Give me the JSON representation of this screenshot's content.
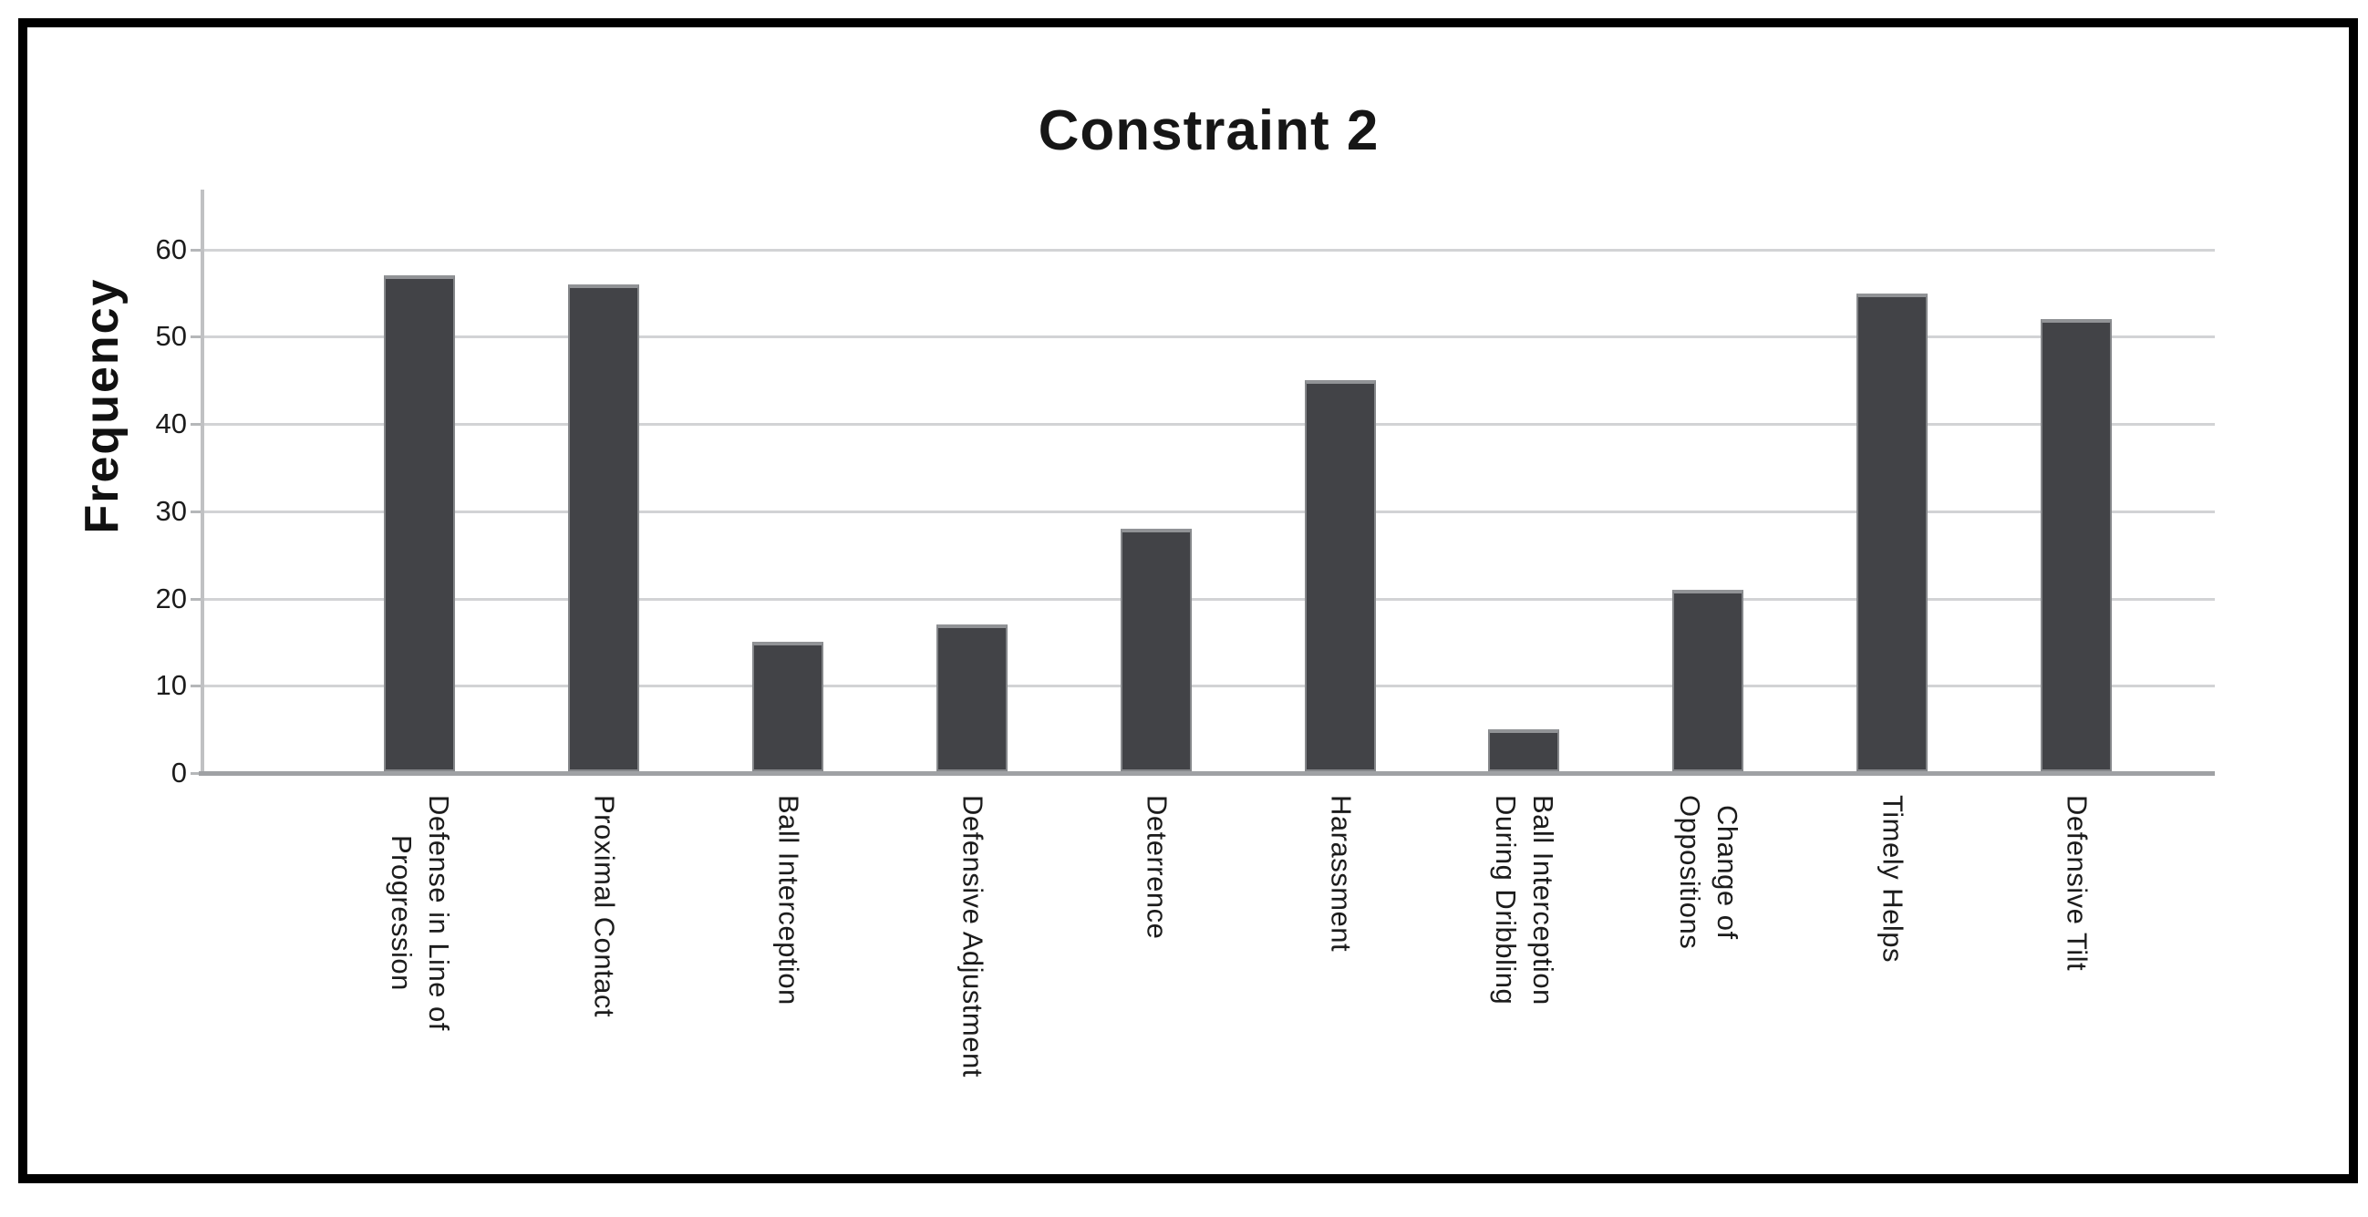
{
  "title": "Constraint 2",
  "chart_data": {
    "type": "bar",
    "title": "Constraint 2",
    "xlabel": "",
    "ylabel": "Frequency",
    "categories": [
      "Defense in Line of\nProgression",
      "Proximal Contact",
      "Ball Interception",
      "Defensive Adjustment",
      "Deterrence",
      "Harassment",
      "Ball Interception\nDuring Dribbling",
      "Change of\nOppositions",
      "Timely Helps",
      "Defensive Tilt"
    ],
    "values": [
      57,
      56,
      15,
      17,
      28,
      45,
      5,
      21,
      55,
      52
    ],
    "yticks": [
      0,
      10,
      20,
      30,
      40,
      50,
      60
    ],
    "ylim": [
      0,
      67
    ],
    "grid": true,
    "legend_position": "none",
    "bar_color": "#424347",
    "bar_border_color": "#85878a",
    "gridline_color": "#d2d3d5",
    "axis_line_color": "#9fa1a4",
    "text_color": "#1c1c1c"
  }
}
